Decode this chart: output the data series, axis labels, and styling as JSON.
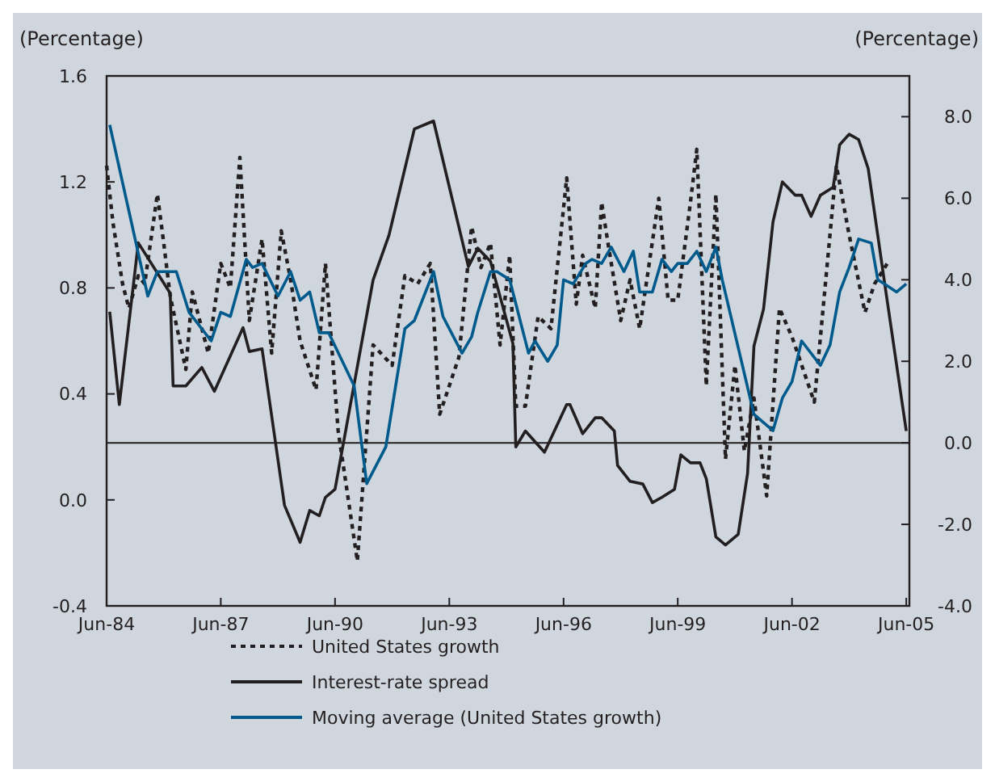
{
  "chart_data": {
    "type": "line",
    "ylabel": "(Percentage)",
    "y2label": "(Percentage)",
    "xlim": [
      "1984-06",
      "2005-07"
    ],
    "xticks": [
      {
        "value": "1984-06",
        "label": "Jun-84"
      },
      {
        "value": "1987-06",
        "label": "Jun-87"
      },
      {
        "value": "1990-06",
        "label": "Jun-90"
      },
      {
        "value": "1993-06",
        "label": "Jun-93"
      },
      {
        "value": "1996-06",
        "label": "Jun-96"
      },
      {
        "value": "1999-06",
        "label": "Jun-99"
      },
      {
        "value": "2002-06",
        "label": "Jun-02"
      },
      {
        "value": "2005-06",
        "label": "Jun-05"
      }
    ],
    "ylim": [
      -0.4,
      1.6
    ],
    "yticks": [
      -0.4,
      {
        "value": 0,
        "label": "0.0"
      },
      0.4,
      0.8,
      1.2,
      1.6
    ],
    "y2lim": [
      -4,
      9
    ],
    "y2ticks": [
      {
        "value": -4,
        "label": "-4.0"
      },
      {
        "value": -2,
        "label": "-2.0"
      },
      {
        "value": 0,
        "label": "0.0"
      },
      {
        "value": 2,
        "label": "2.0"
      },
      {
        "value": 4,
        "label": "4.0"
      },
      {
        "value": 6,
        "label": "6.0"
      },
      {
        "value": 8,
        "label": "8.0"
      }
    ],
    "ref_lines": [
      {
        "axis": "y2",
        "value": 0,
        "color": "#231f20"
      }
    ],
    "legend": "bottom",
    "grid": false,
    "series": [
      {
        "name": "United States growth",
        "color": "#231f20",
        "axis": "y2",
        "line_style": "dashed",
        "x": [
          "1984-06",
          "1984-08",
          "1984-11",
          "1985-01",
          "1985-04",
          "1985-06",
          "1985-10",
          "1985-12",
          "1986-02",
          "1986-07",
          "1986-09",
          "1987-02",
          "1987-06",
          "1987-09",
          "1987-12",
          "1988-03",
          "1988-07",
          "1988-10",
          "1989-01",
          "1989-04",
          "1989-07",
          "1989-12",
          "1990-03",
          "1990-07",
          "1991-01",
          "1991-06",
          "1991-12",
          "1992-04",
          "1992-08",
          "1992-12",
          "1993-03",
          "1993-09",
          "1994-01",
          "1994-04",
          "1994-07",
          "1994-10",
          "1995-01",
          "1995-03",
          "1995-06",
          "1995-10",
          "1996-02",
          "1996-07",
          "1996-10",
          "1996-12",
          "1997-04",
          "1997-06",
          "1997-08",
          "1997-12",
          "1998-03",
          "1998-06",
          "1998-12",
          "1999-03",
          "1999-06",
          "1999-10",
          "1999-12",
          "2000-03",
          "2000-06",
          "2000-09",
          "2000-12",
          "2001-03",
          "2001-06",
          "2001-10",
          "2002-02",
          "2002-06",
          "2003-01",
          "2003-03",
          "2003-08",
          "2003-12",
          "2004-05",
          "2004-08",
          "2004-12"
        ],
        "values": [
          6.8,
          5.4,
          3.9,
          3.3,
          4.1,
          3.9,
          6.1,
          4.9,
          3.6,
          1.8,
          3.7,
          2.2,
          4.4,
          3.8,
          7.0,
          3.0,
          5.0,
          2.2,
          5.2,
          4.0,
          2.5,
          1.3,
          4.4,
          0.3,
          -2.9,
          2.4,
          1.9,
          4.1,
          3.9,
          4.4,
          0.7,
          2.1,
          5.3,
          4.3,
          4.9,
          2.4,
          4.6,
          0.9,
          0.9,
          3.1,
          2.8,
          6.5,
          3.4,
          4.6,
          3.3,
          5.9,
          4.9,
          3.0,
          4.0,
          2.8,
          6.0,
          3.5,
          3.5,
          5.9,
          7.2,
          1.4,
          6.1,
          -0.4,
          1.9,
          -0.2,
          1.1,
          -1.3,
          3.3,
          2.6,
          1.0,
          2.6,
          6.8,
          5.1,
          3.2,
          3.9,
          4.4
        ]
      },
      {
        "name": "Interest-rate spread",
        "color": "#231f20",
        "line_style": "solid",
        "x": [
          "1984-07",
          "1984-10",
          "1985-04",
          "1986-02",
          "1986-03",
          "1986-07",
          "1986-12",
          "1987-04",
          "1988-01",
          "1988-03",
          "1988-07",
          "1989-02",
          "1989-07",
          "1989-10",
          "1990-01",
          "1990-03",
          "1990-06",
          "1991-06",
          "1991-11",
          "1992-07",
          "1993-01",
          "1993-12",
          "1994-03",
          "1994-07",
          "1995-02",
          "1995-03",
          "1995-06",
          "1995-12",
          "1996-07",
          "1996-08",
          "1996-12",
          "1997-04",
          "1997-06",
          "1997-10",
          "1997-11",
          "1998-03",
          "1998-07",
          "1998-10",
          "1999-01",
          "1999-05",
          "1999-07",
          "1999-10",
          "2000-01",
          "2000-03",
          "2000-06",
          "2000-09",
          "2001-01",
          "2001-04",
          "2001-06",
          "2001-09",
          "2001-12",
          "2002-03",
          "2002-07",
          "2002-09",
          "2002-12",
          "2003-03",
          "2003-07",
          "2003-09",
          "2003-12",
          "2004-03",
          "2004-06",
          "2004-11",
          "2005-06"
        ],
        "values": [
          0.71,
          0.36,
          0.97,
          0.78,
          0.43,
          0.43,
          0.5,
          0.41,
          0.65,
          0.56,
          0.57,
          -0.02,
          -0.16,
          -0.04,
          -0.06,
          0.01,
          0.04,
          0.83,
          1.0,
          1.4,
          1.43,
          0.88,
          0.95,
          0.9,
          0.59,
          0.2,
          0.26,
          0.18,
          0.36,
          0.36,
          0.25,
          0.31,
          0.31,
          0.26,
          0.13,
          0.07,
          0.06,
          -0.01,
          0.01,
          0.04,
          0.17,
          0.14,
          0.14,
          0.08,
          -0.14,
          -0.17,
          -0.13,
          0.1,
          0.58,
          0.72,
          1.05,
          1.2,
          1.15,
          1.15,
          1.07,
          1.15,
          1.18,
          1.34,
          1.38,
          1.36,
          1.25,
          0.83,
          0.26
        ]
      },
      {
        "name": "Moving average (United States growth)",
        "color": "#005a8c",
        "axis": "y2",
        "line_style": "solid",
        "x": [
          "1984-07",
          "1985-07",
          "1985-10",
          "1986-04",
          "1986-08",
          "1987-03",
          "1987-06",
          "1987-09",
          "1988-02",
          "1988-04",
          "1988-07",
          "1988-12",
          "1989-04",
          "1989-07",
          "1989-10",
          "1990-01",
          "1990-04",
          "1990-12",
          "1991-04",
          "1991-10",
          "1992-04",
          "1992-07",
          "1993-01",
          "1993-04",
          "1993-10",
          "1994-01",
          "1994-03",
          "1994-07",
          "1994-09",
          "1995-01",
          "1995-07",
          "1995-09",
          "1996-01",
          "1996-04",
          "1996-06",
          "1996-09",
          "1997-01",
          "1997-03",
          "1997-06",
          "1997-09",
          "1998-01",
          "1998-04",
          "1998-06",
          "1998-10",
          "1999-01",
          "1999-04",
          "1999-06",
          "1999-09",
          "1999-12",
          "2000-03",
          "2000-06",
          "2000-08",
          "2001-06",
          "2001-12",
          "2002-03",
          "2002-06",
          "2002-09",
          "2003-03",
          "2003-06",
          "2003-09",
          "2003-12",
          "2004-03",
          "2004-07",
          "2004-09",
          "2004-11",
          "2005-03",
          "2005-06"
        ],
        "values": [
          7.8,
          3.6,
          4.2,
          4.2,
          3.2,
          2.5,
          3.2,
          3.1,
          4.5,
          4.3,
          4.4,
          3.6,
          4.2,
          3.5,
          3.7,
          2.7,
          2.7,
          1.4,
          -1.0,
          -0.1,
          2.8,
          3.0,
          4.2,
          3.1,
          2.2,
          2.6,
          3.2,
          4.2,
          4.2,
          4.0,
          2.2,
          2.5,
          2.0,
          2.4,
          4.0,
          3.9,
          4.4,
          4.5,
          4.4,
          4.8,
          4.2,
          4.7,
          3.7,
          3.7,
          4.5,
          4.2,
          4.4,
          4.4,
          4.7,
          4.2,
          4.8,
          4.0,
          0.7,
          0.3,
          1.1,
          1.5,
          2.5,
          1.9,
          2.4,
          3.7,
          4.3,
          5.0,
          4.9,
          4.0,
          3.9,
          3.7,
          3.9
        ]
      }
    ]
  }
}
